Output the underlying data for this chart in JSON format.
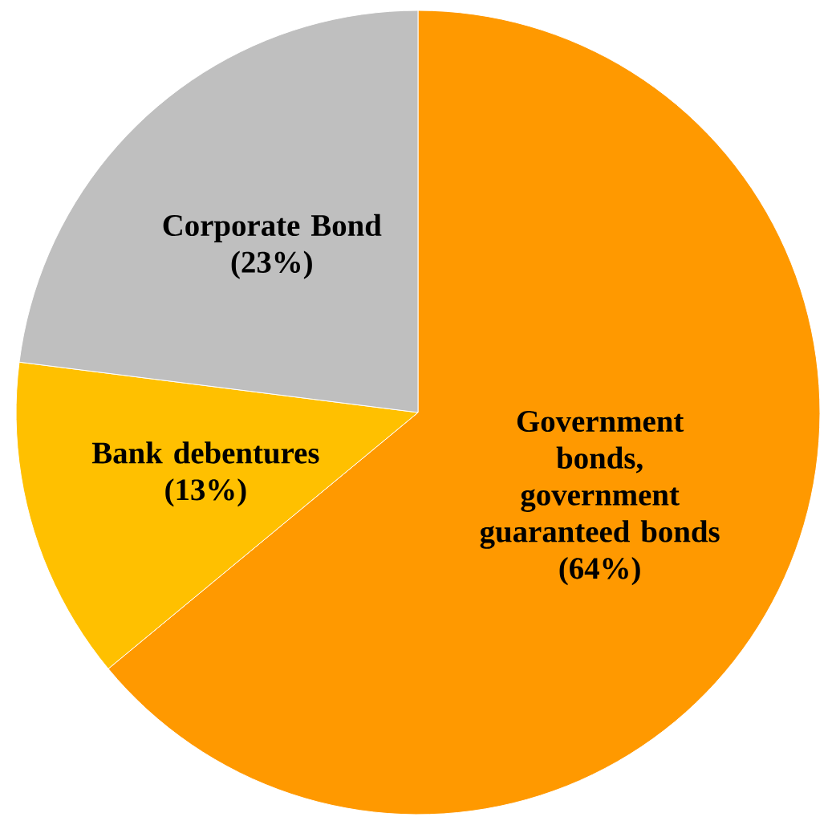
{
  "chart_data": {
    "type": "pie",
    "categories": [
      "Government bonds, government guaranteed bonds",
      "Bank debentures",
      "Corporate Bond"
    ],
    "values": [
      64,
      13,
      23
    ],
    "value_labels": [
      "(64%)",
      "(13%)",
      "(23%)"
    ],
    "colors": [
      "#ff9900",
      "#ffc000",
      "#bfbfbf"
    ]
  }
}
